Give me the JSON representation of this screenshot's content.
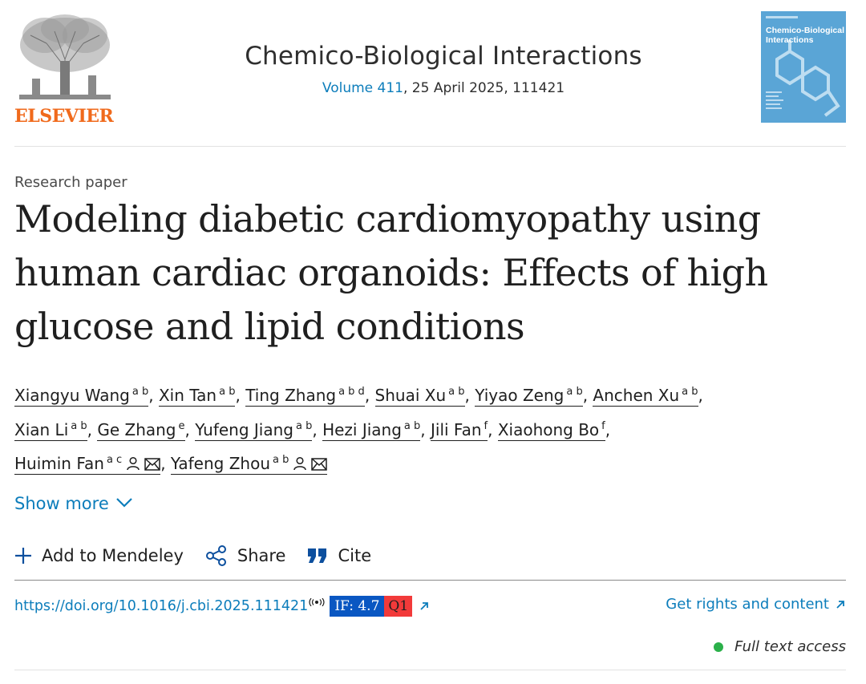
{
  "publisher": {
    "name": "ELSEVIER",
    "logo_icon": "elsevier-tree-logo",
    "brand_color": "#f06a1c"
  },
  "journal": {
    "title": "Chemico-Biological Interactions",
    "volume_link": "Volume 411",
    "issue_rest": ", 25 April 2025, 111421",
    "cover_title": "Chemico-Biological Interactions",
    "cover_color": "#5aa5d6"
  },
  "article": {
    "type": "Research paper",
    "title": "Modeling diabetic cardiomyopathy using human cardiac organoids: Effects of high glucose and lipid conditions"
  },
  "authors": [
    {
      "name": "Xiangyu Wang",
      "aff": "a b"
    },
    {
      "name": "Xin Tan",
      "aff": "a b"
    },
    {
      "name": "Ting Zhang",
      "aff": "a b d"
    },
    {
      "name": "Shuai Xu",
      "aff": "a b"
    },
    {
      "name": "Yiyao Zeng",
      "aff": "a b"
    },
    {
      "name": "Anchen Xu",
      "aff": "a b"
    },
    {
      "name": "Xian Li",
      "aff": "a b"
    },
    {
      "name": "Ge Zhang",
      "aff": "e"
    },
    {
      "name": "Yufeng Jiang",
      "aff": "a b"
    },
    {
      "name": "Hezi Jiang",
      "aff": "a b"
    },
    {
      "name": "Jili Fan",
      "aff": "f"
    },
    {
      "name": "Xiaohong Bo",
      "aff": "f"
    },
    {
      "name": "Huimin Fan",
      "aff": "a c",
      "icons": [
        "person-icon",
        "mail-icon"
      ]
    },
    {
      "name": "Yafeng Zhou",
      "aff": "a b",
      "icons": [
        "person-icon",
        "mail-icon"
      ]
    }
  ],
  "show_more": {
    "label": "Show more",
    "icon": "chevron-down-icon"
  },
  "actions": [
    {
      "label": "Add to Mendeley",
      "icon": "plus-icon"
    },
    {
      "label": "Share",
      "icon": "share-icon"
    },
    {
      "label": "Cite",
      "icon": "quote-icon"
    }
  ],
  "doi": {
    "url": "https://doi.org/10.1016/j.cbi.2025.111421",
    "impact_factor": "IF: 4.7",
    "quartile": "Q1",
    "if_badge_color": "#0a57c2",
    "quartile_badge_color": "#f23a3a"
  },
  "rights": {
    "label": "Get rights and content"
  },
  "access": {
    "label": "Full text access",
    "dot_color": "#2bb04a"
  },
  "colors": {
    "link": "#0c7dbb",
    "text": "#1f1f1f"
  }
}
